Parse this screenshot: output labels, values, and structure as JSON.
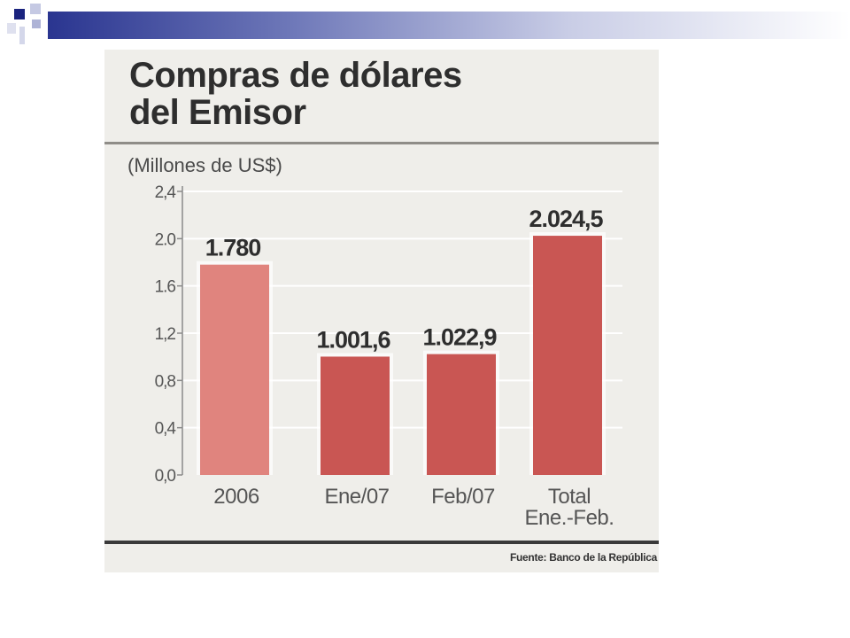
{
  "chart_data": {
    "type": "bar",
    "title": "Compras de dólares del Emisor",
    "title_lines": [
      "Compras de dólares",
      "del Emisor"
    ],
    "unit_label": "(Millones de US$)",
    "categories": [
      [
        "2006"
      ],
      [
        "Ene/07"
      ],
      [
        "Feb/07"
      ],
      [
        "Total",
        "Ene.-Feb."
      ]
    ],
    "values": [
      1780,
      1001.6,
      1022.9,
      2024.5
    ],
    "value_labels": [
      "1.780",
      "1.001,6",
      "1.022,9",
      "2.024,5"
    ],
    "y_ticks": [
      "0,0",
      "0,4",
      "0,8",
      "1,2",
      "1.6",
      "2.0",
      "2,4"
    ],
    "ylim": [
      0,
      2400
    ],
    "grid": true,
    "bar_colors": [
      "#e0847e",
      "#c95653",
      "#c95653",
      "#c95653"
    ],
    "source": "Fuente: Banco de la República"
  }
}
